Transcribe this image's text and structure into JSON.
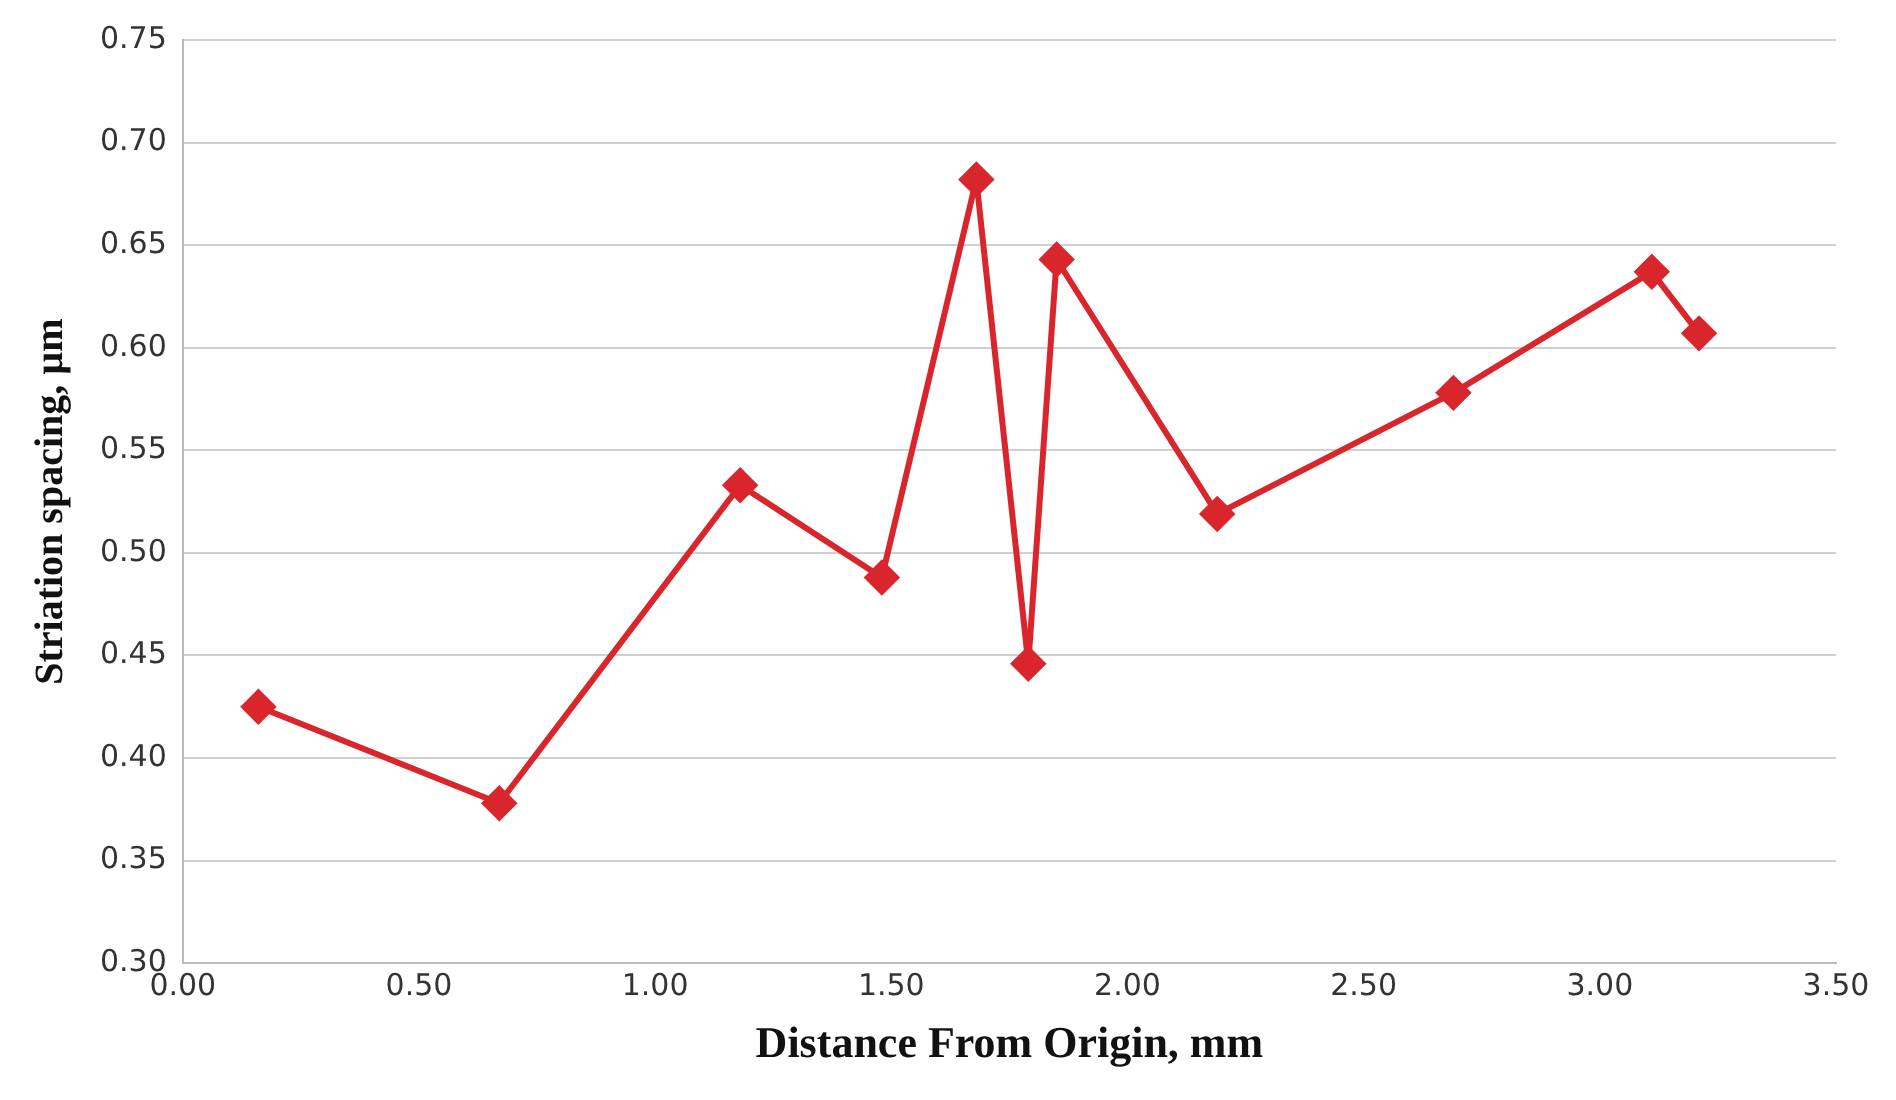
{
  "chart_data": {
    "type": "line",
    "xlabel": "Distance From Origin, mm",
    "ylabel": "Striation spacing, µm",
    "x": [
      0.16,
      0.67,
      1.18,
      1.48,
      1.68,
      1.79,
      1.85,
      2.19,
      2.69,
      3.11,
      3.21
    ],
    "series": [
      {
        "color": "#d9262c",
        "values": [
          0.425,
          0.378,
          0.533,
          0.488,
          0.682,
          0.446,
          0.643,
          0.519,
          0.578,
          0.637,
          0.607
        ]
      }
    ],
    "xlim": [
      0,
      3.5
    ],
    "xticks": [
      {
        "value": 0,
        "label": "0.00"
      },
      {
        "value": 0.5,
        "label": "0.50"
      },
      {
        "value": 1,
        "label": "1.00"
      },
      {
        "value": 1.5,
        "label": "1.50"
      },
      {
        "value": 2,
        "label": "2.00"
      },
      {
        "value": 2.5,
        "label": "2.50"
      },
      {
        "value": 3,
        "label": "3.00"
      },
      {
        "value": 3.5,
        "label": "3.50"
      }
    ],
    "ylim": [
      0.3,
      0.75
    ],
    "yticks": [
      {
        "value": 0.3,
        "label": "0.30"
      },
      {
        "value": 0.35,
        "label": "0.35"
      },
      {
        "value": 0.4,
        "label": "0.40"
      },
      {
        "value": 0.45,
        "label": "0.45"
      },
      {
        "value": 0.5,
        "label": "0.50"
      },
      {
        "value": 0.55,
        "label": "0.55"
      },
      {
        "value": 0.6,
        "label": "0.60"
      },
      {
        "value": 0.65,
        "label": "0.65"
      },
      {
        "value": 0.7,
        "label": "0.70"
      },
      {
        "value": 0.75,
        "label": "0.75"
      }
    ],
    "grid": "y",
    "legend": false,
    "marker": "diamond",
    "line_style": "solid"
  }
}
